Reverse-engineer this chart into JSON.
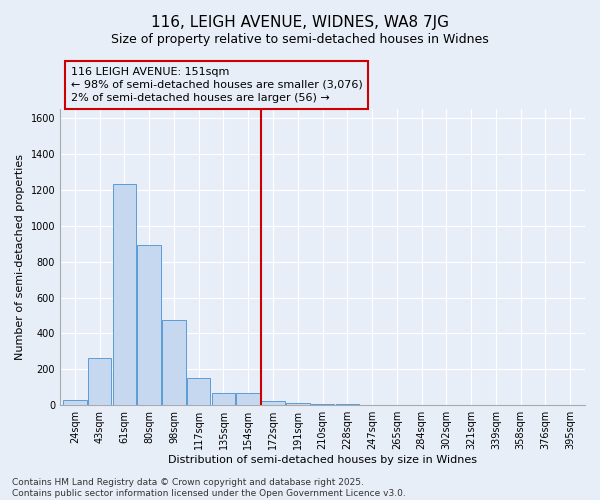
{
  "title": "116, LEIGH AVENUE, WIDNES, WA8 7JG",
  "subtitle": "Size of property relative to semi-detached houses in Widnes",
  "xlabel": "Distribution of semi-detached houses by size in Widnes",
  "ylabel": "Number of semi-detached properties",
  "categories": [
    "24sqm",
    "43sqm",
    "61sqm",
    "80sqm",
    "98sqm",
    "117sqm",
    "135sqm",
    "154sqm",
    "172sqm",
    "191sqm",
    "210sqm",
    "228sqm",
    "247sqm",
    "265sqm",
    "284sqm",
    "302sqm",
    "321sqm",
    "339sqm",
    "358sqm",
    "376sqm",
    "395sqm"
  ],
  "values": [
    30,
    265,
    1230,
    895,
    475,
    150,
    70,
    70,
    25,
    15,
    8,
    5,
    3,
    2,
    1,
    1,
    1,
    1,
    1,
    1,
    1
  ],
  "bar_color": "#c5d8f0",
  "bar_edge_color": "#5b9bd5",
  "red_line_index": 7.5,
  "red_line_label": "116 LEIGH AVENUE: 151sqm",
  "annotation_smaller": "← 98% of semi-detached houses are smaller (3,076)",
  "annotation_larger": "2% of semi-detached houses are larger (56) →",
  "ylim": [
    0,
    1650
  ],
  "yticks": [
    0,
    200,
    400,
    600,
    800,
    1000,
    1200,
    1400,
    1600
  ],
  "background_color": "#e8eef8",
  "grid_color": "#ffffff",
  "footer1": "Contains HM Land Registry data © Crown copyright and database right 2025.",
  "footer2": "Contains public sector information licensed under the Open Government Licence v3.0.",
  "title_fontsize": 11,
  "subtitle_fontsize": 9,
  "ylabel_fontsize": 8,
  "xlabel_fontsize": 8,
  "tick_fontsize": 7,
  "annotation_fontsize": 8,
  "footer_fontsize": 6.5
}
